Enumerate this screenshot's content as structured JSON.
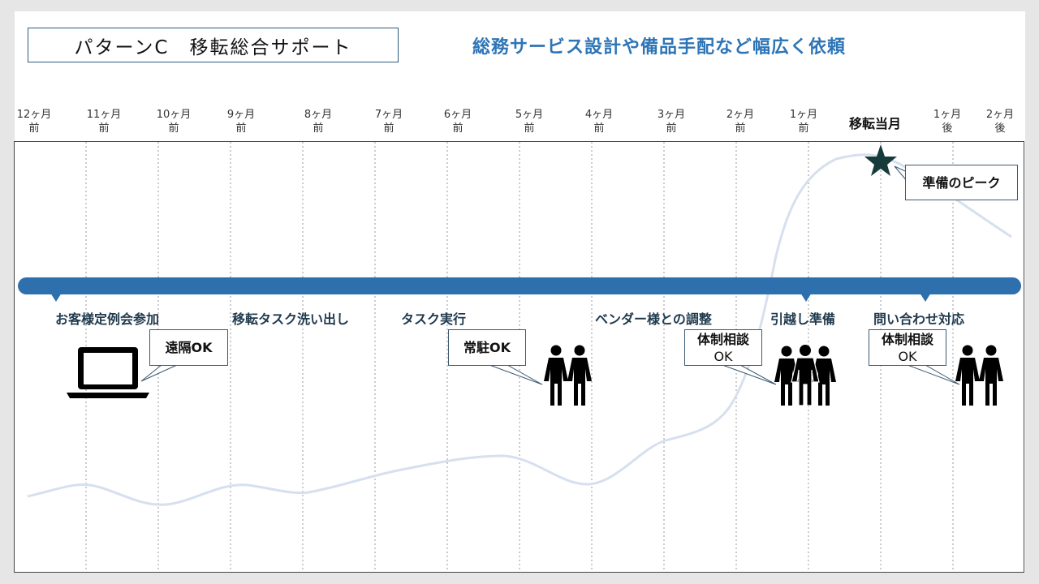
{
  "header": {
    "title": "パターンC　移転総合サポート",
    "subtitle": "総務サービス設計や備品手配など幅広く依頼"
  },
  "months": [
    {
      "label_top": "12ヶ月",
      "label_bottom": "前"
    },
    {
      "label_top": "11ヶ月",
      "label_bottom": "前"
    },
    {
      "label_top": "10ヶ月",
      "label_bottom": "前"
    },
    {
      "label_top": "9ヶ月",
      "label_bottom": "前"
    },
    {
      "label_top": "8ヶ月",
      "label_bottom": "前"
    },
    {
      "label_top": "7ヶ月",
      "label_bottom": "前"
    },
    {
      "label_top": "6ヶ月",
      "label_bottom": "前"
    },
    {
      "label_top": "5ヶ月",
      "label_bottom": "前"
    },
    {
      "label_top": "4ヶ月",
      "label_bottom": "前"
    },
    {
      "label_top": "3ヶ月",
      "label_bottom": "前"
    },
    {
      "label_top": "2ヶ月",
      "label_bottom": "前"
    },
    {
      "label_top": "1ヶ月",
      "label_bottom": "前"
    },
    {
      "label_top": "移転当月",
      "label_bottom": ""
    },
    {
      "label_top": "1ヶ月",
      "label_bottom": "後"
    },
    {
      "label_top": "2ヶ月",
      "label_bottom": "後"
    }
  ],
  "phases": [
    "お客様定例会参加",
    "移転タスク洗い出し",
    "タスク実行",
    "ベンダー様との調整",
    "引越し準備",
    "問い合わせ対応"
  ],
  "callouts": {
    "peak": "準備のピーク",
    "remote": "遠隔OK",
    "onsite": "常駐OK",
    "team1_line1": "体制相談",
    "team1_line2": "OK",
    "team2_line1": "体制相談",
    "team2_line2": "OK"
  },
  "icons": {
    "star": "star-icon",
    "laptop": "laptop-icon",
    "people_two": "two-people-icon",
    "people_three": "three-people-icon"
  },
  "colors": {
    "timeline_bar": "#2e6fad",
    "workload_curve": "#d6e0ee",
    "star": "#173a3a",
    "subtitle": "#2e75b6",
    "title_border": "#2e5d7e"
  }
}
